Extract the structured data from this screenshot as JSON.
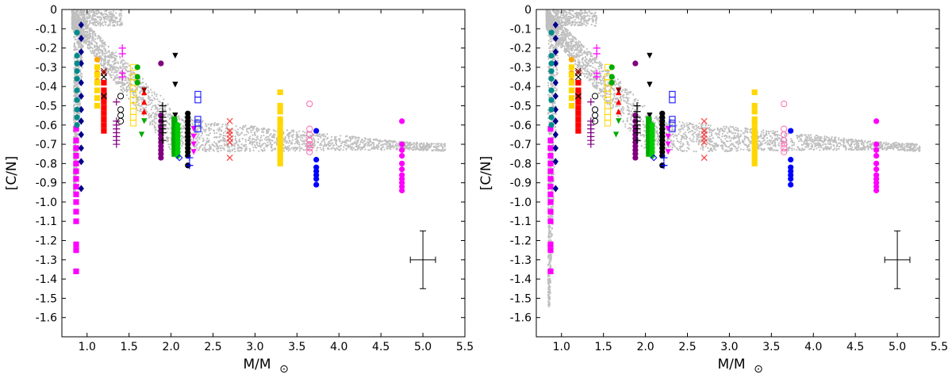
{
  "chart_data": [
    {
      "type": "scatter",
      "panel": "left",
      "title": "",
      "xlabel": "M/M",
      "xlabel_sub": "⊙",
      "ylabel": "[C/N]",
      "xlim": [
        0.7,
        5.5
      ],
      "ylim": [
        -1.7,
        0.0
      ],
      "xticks": [
        "1.0",
        "1.5",
        "2.0",
        "2.5",
        "3.0",
        "3.5",
        "4.0",
        "4.5",
        "5.0",
        "5.5"
      ],
      "yticks": [
        "0",
        "-0.1",
        "-0.2",
        "-0.3",
        "-0.4",
        "-0.5",
        "-0.6",
        "-0.7",
        "-0.8",
        "-0.9",
        "-1.0",
        "-1.1",
        "-1.2",
        "-1.3",
        "-1.4",
        "-1.5",
        "-1.6"
      ],
      "model_cloud": {
        "color": "#bfbfbf",
        "label": "models",
        "low_mass_tail_min": -0.95
      },
      "error_bar": {
        "x": 5.0,
        "y": -1.3,
        "x_err": 0.15,
        "y_err": 0.15
      },
      "series": [
        {
          "color": "#ff00ff",
          "marker": "square",
          "x": [
            0.87,
            0.87,
            0.87,
            0.87,
            0.87,
            0.87,
            0.87,
            0.87,
            0.87,
            0.87,
            0.87,
            0.87,
            0.87,
            0.87,
            0.87
          ],
          "y": [
            -0.62,
            -0.68,
            -0.72,
            -0.76,
            -0.8,
            -0.84,
            -0.88,
            -0.92,
            -0.96,
            -1.0,
            -1.05,
            -1.1,
            -1.22,
            -1.25,
            -1.36
          ]
        },
        {
          "color": "#00008b",
          "marker": "diamond",
          "x": [
            0.93,
            0.93,
            0.93,
            0.93,
            0.93,
            0.93,
            0.93,
            0.93,
            0.93,
            0.93,
            0.93,
            0.93
          ],
          "y": [
            -0.08,
            -0.15,
            -0.22,
            -0.28,
            -0.38,
            -0.45,
            -0.52,
            -0.58,
            -0.65,
            -0.72,
            -0.79,
            -0.93
          ]
        },
        {
          "color": "#008b8b",
          "marker": "circle",
          "x": [
            0.88,
            0.88,
            0.88,
            0.88,
            0.88,
            0.88,
            0.88,
            0.88,
            0.88,
            0.88
          ],
          "y": [
            -0.12,
            -0.24,
            -0.28,
            -0.32,
            -0.36,
            -0.42,
            -0.47,
            -0.52,
            -0.56,
            -0.6
          ]
        },
        {
          "color": "#ffa500",
          "marker": "circle",
          "x": [
            1.12,
            1.12,
            1.12
          ],
          "y": [
            -0.26,
            -0.33,
            -0.37
          ]
        },
        {
          "color": "#ffd700",
          "marker": "square",
          "x": [
            1.12,
            1.12,
            1.12,
            1.12,
            1.12,
            1.12
          ],
          "y": [
            -0.3,
            -0.34,
            -0.38,
            -0.42,
            -0.46,
            -0.5
          ]
        },
        {
          "color": "#ff0000",
          "marker": "square",
          "x": [
            1.2,
            1.2,
            1.2,
            1.2,
            1.2,
            1.2,
            1.2,
            1.2,
            1.2
          ],
          "y": [
            -0.38,
            -0.42,
            -0.45,
            -0.48,
            -0.51,
            -0.54,
            -0.57,
            -0.6,
            -0.63
          ]
        },
        {
          "color": "#8b0000",
          "marker": "x",
          "x": [
            1.2,
            1.2
          ],
          "y": [
            -0.32,
            -0.33
          ]
        },
        {
          "color": "#000000",
          "marker": "x",
          "x": [
            1.2,
            1.2
          ],
          "y": [
            -0.35,
            -0.45
          ]
        },
        {
          "color": "#ff00ff",
          "marker": "plus",
          "x": [
            1.42,
            1.42,
            1.42,
            1.42
          ],
          "y": [
            -0.2,
            -0.23,
            -0.33,
            -0.35
          ]
        },
        {
          "color": "#800080",
          "marker": "plus",
          "x": [
            1.35,
            1.35,
            1.35,
            1.35,
            1.35,
            1.35,
            1.35,
            1.35
          ],
          "y": [
            -0.48,
            -0.58,
            -0.6,
            -0.62,
            -0.64,
            -0.66,
            -0.68,
            -0.7
          ]
        },
        {
          "color": "#000000",
          "marker": "circle-open",
          "x": [
            1.4,
            1.4,
            1.4,
            1.4
          ],
          "y": [
            -0.45,
            -0.52,
            -0.55,
            -0.58
          ]
        },
        {
          "color": "#ffd700",
          "marker": "square-open",
          "x": [
            1.55,
            1.55,
            1.55,
            1.55,
            1.55,
            1.55,
            1.55,
            1.55,
            1.55,
            1.55
          ],
          "y": [
            -0.3,
            -0.35,
            -0.38,
            -0.41,
            -0.44,
            -0.47,
            -0.5,
            -0.53,
            -0.56,
            -0.59
          ]
        },
        {
          "color": "#00aa00",
          "marker": "circle",
          "x": [
            1.6,
            1.6,
            1.6
          ],
          "y": [
            -0.3,
            -0.35,
            -0.38
          ]
        },
        {
          "color": "#ff0000",
          "marker": "triangle-up",
          "x": [
            1.68,
            1.68,
            1.68
          ],
          "y": [
            -0.43,
            -0.48,
            -0.53
          ]
        },
        {
          "color": "#8b0000",
          "marker": "triangle-down",
          "x": [
            1.68
          ],
          "y": [
            -0.42
          ]
        },
        {
          "color": "#00aa00",
          "marker": "triangle-down",
          "x": [
            1.65,
            1.68
          ],
          "y": [
            -0.65,
            -0.58
          ]
        },
        {
          "color": "#800080",
          "marker": "circle",
          "x": [
            1.88,
            1.88,
            1.88,
            1.88,
            1.88,
            1.88,
            1.88,
            1.88,
            1.88,
            1.88,
            1.88,
            1.88
          ],
          "y": [
            -0.28,
            -0.55,
            -0.58,
            -0.61,
            -0.63,
            -0.65,
            -0.67,
            -0.69,
            -0.71,
            -0.73,
            -0.75,
            -0.77
          ]
        },
        {
          "color": "#000000",
          "marker": "plus",
          "x": [
            1.9,
            1.9,
            1.9,
            1.9,
            1.9,
            1.9,
            1.9,
            1.9
          ],
          "y": [
            -0.5,
            -0.53,
            -0.56,
            -0.58,
            -0.6,
            -0.62,
            -0.64,
            -0.68
          ]
        },
        {
          "color": "#000000",
          "marker": "triangle-down",
          "x": [
            2.05,
            2.05,
            2.05
          ],
          "y": [
            -0.24,
            -0.39,
            -0.55
          ]
        },
        {
          "color": "#00aa00",
          "marker": "square",
          "x": [
            2.04,
            2.04,
            2.04,
            2.04,
            2.04,
            2.04,
            2.04,
            2.04,
            2.04,
            2.04,
            2.04,
            2.04,
            2.04
          ],
          "y": [
            -0.57,
            -0.59,
            -0.61,
            -0.63,
            -0.65,
            -0.67,
            -0.69,
            -0.71,
            -0.73,
            -0.75,
            -0.58,
            -0.62,
            -0.66
          ]
        },
        {
          "color": "#00cc00",
          "marker": "circle",
          "x": [
            2.08,
            2.08,
            2.08,
            2.08,
            2.08,
            2.08,
            2.08,
            2.08,
            2.08
          ],
          "y": [
            -0.6,
            -0.62,
            -0.64,
            -0.66,
            -0.68,
            -0.7,
            -0.72,
            -0.74,
            -0.76
          ]
        },
        {
          "color": "#0000ff",
          "marker": "diamond-open",
          "x": [
            2.1
          ],
          "y": [
            -0.77
          ]
        },
        {
          "color": "#000000",
          "marker": "circle",
          "x": [
            2.2,
            2.2,
            2.2,
            2.2,
            2.2,
            2.2,
            2.2,
            2.2,
            2.2,
            2.2,
            2.2,
            2.2,
            2.2
          ],
          "y": [
            -0.54,
            -0.56,
            -0.58,
            -0.6,
            -0.62,
            -0.64,
            -0.66,
            -0.68,
            -0.7,
            -0.72,
            -0.74,
            -0.76,
            -0.81
          ]
        },
        {
          "color": "#0000ff",
          "marker": "plus",
          "x": [
            2.22,
            2.22
          ],
          "y": [
            -0.77,
            -0.81
          ]
        },
        {
          "color": "#ff00ff",
          "marker": "triangle-down",
          "x": [
            2.27,
            2.27,
            2.27,
            2.27
          ],
          "y": [
            -0.62,
            -0.66,
            -0.7,
            -0.74
          ]
        },
        {
          "color": "#0000ff",
          "marker": "square-open",
          "x": [
            2.32,
            2.32,
            2.32,
            2.32,
            2.32
          ],
          "y": [
            -0.44,
            -0.47,
            -0.57,
            -0.59,
            -0.62
          ]
        },
        {
          "color": "#ff4040",
          "marker": "x",
          "x": [
            2.7,
            2.7,
            2.7,
            2.7,
            2.7,
            2.7
          ],
          "y": [
            -0.58,
            -0.63,
            -0.65,
            -0.67,
            -0.69,
            -0.77
          ]
        },
        {
          "color": "#ffd700",
          "marker": "square",
          "x": [
            3.3,
            3.3,
            3.3,
            3.3,
            3.3,
            3.3,
            3.3,
            3.3,
            3.3,
            3.3,
            3.3,
            3.3,
            3.3,
            3.3,
            3.3,
            3.3
          ],
          "y": [
            -0.43,
            -0.5,
            -0.53,
            -0.57,
            -0.59,
            -0.62,
            -0.64,
            -0.66,
            -0.68,
            -0.7,
            -0.72,
            -0.74,
            -0.76,
            -0.78,
            -0.8,
            -0.74
          ]
        },
        {
          "color": "#ff69b4",
          "marker": "circle-open",
          "x": [
            3.65,
            3.65,
            3.65,
            3.65,
            3.65,
            3.65,
            3.65
          ],
          "y": [
            -0.49,
            -0.62,
            -0.65,
            -0.68,
            -0.7,
            -0.72,
            -0.74
          ]
        },
        {
          "color": "#0000ff",
          "marker": "circle",
          "x": [
            3.73,
            3.73,
            3.73,
            3.73,
            3.73,
            3.73,
            3.73
          ],
          "y": [
            -0.63,
            -0.78,
            -0.82,
            -0.84,
            -0.86,
            -0.88,
            -0.91
          ]
        },
        {
          "color": "#ff00ff",
          "marker": "circle",
          "x": [
            4.75,
            4.75,
            4.75,
            4.75,
            4.75,
            4.75,
            4.75,
            4.75,
            4.75,
            4.75,
            4.75
          ],
          "y": [
            -0.58,
            -0.7,
            -0.73,
            -0.76,
            -0.8,
            -0.83,
            -0.86,
            -0.88,
            -0.9,
            -0.92,
            -0.94
          ]
        }
      ]
    },
    {
      "type": "scatter",
      "panel": "right",
      "title": "",
      "xlabel": "M/M",
      "xlabel_sub": "⊙",
      "ylabel": "[C/N]",
      "xlim": [
        0.7,
        5.5
      ],
      "ylim": [
        -1.7,
        0.0
      ],
      "xticks": [
        "1.0",
        "1.5",
        "2.0",
        "2.5",
        "3.0",
        "3.5",
        "4.0",
        "4.5",
        "5.0",
        "5.5"
      ],
      "yticks": [
        "0",
        "-0.1",
        "-0.2",
        "-0.3",
        "-0.4",
        "-0.5",
        "-0.6",
        "-0.7",
        "-0.8",
        "-0.9",
        "-1.0",
        "-1.1",
        "-1.2",
        "-1.3",
        "-1.4",
        "-1.5",
        "-1.6"
      ],
      "model_cloud": {
        "color": "#bfbfbf",
        "label": "models",
        "low_mass_tail_min": -1.55
      },
      "error_bar": {
        "x": 5.0,
        "y": -1.3,
        "x_err": 0.15,
        "y_err": 0.15
      },
      "series_ref": "same as left panel"
    }
  ]
}
